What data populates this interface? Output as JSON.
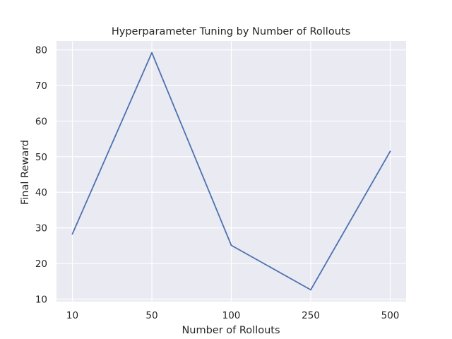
{
  "chart_data": {
    "type": "line",
    "title": "Hyperparameter Tuning by Number of Rollouts",
    "xlabel": "Number of Rollouts",
    "ylabel": "Final Reward",
    "categories": [
      "10",
      "50",
      "100",
      "250",
      "500"
    ],
    "series": [
      {
        "values": [
          28.3,
          79.2,
          25.1,
          12.6,
          51.5
        ],
        "color": "#4c72b0"
      }
    ],
    "yticks": [
      10,
      20,
      30,
      40,
      50,
      60,
      70,
      80
    ],
    "ylim": [
      9.3,
      82.5
    ],
    "grid": true,
    "legend": "none",
    "background": "#eaeaf2",
    "grid_color": "#ffffff"
  }
}
